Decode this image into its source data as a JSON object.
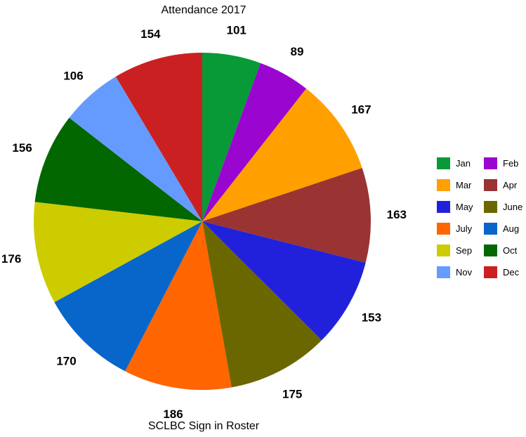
{
  "chart_data": {
    "type": "pie",
    "title": "Attendance 2017",
    "caption": "SCLBC Sign in Roster",
    "legend_position": "right",
    "start_angle_deg": 0,
    "direction": "clockwise",
    "slices": [
      {
        "label": "Jan",
        "value": 101,
        "color": "#079a37"
      },
      {
        "label": "Feb",
        "value": 89,
        "color": "#9a06cf"
      },
      {
        "label": "Mar",
        "value": 167,
        "color": "#ff9f00"
      },
      {
        "label": "Apr",
        "value": 163,
        "color": "#993433"
      },
      {
        "label": "May",
        "value": 153,
        "color": "#2121db"
      },
      {
        "label": "June",
        "value": 175,
        "color": "#6a6700"
      },
      {
        "label": "July",
        "value": 186,
        "color": "#ff6500"
      },
      {
        "label": "Aug",
        "value": 170,
        "color": "#0866cb"
      },
      {
        "label": "Sep",
        "value": 176,
        "color": "#cdcc00"
      },
      {
        "label": "Oct",
        "value": 156,
        "color": "#036700"
      },
      {
        "label": "Nov",
        "value": 106,
        "color": "#659bff"
      },
      {
        "label": "Dec",
        "value": 154,
        "color": "#cb2021"
      }
    ]
  }
}
